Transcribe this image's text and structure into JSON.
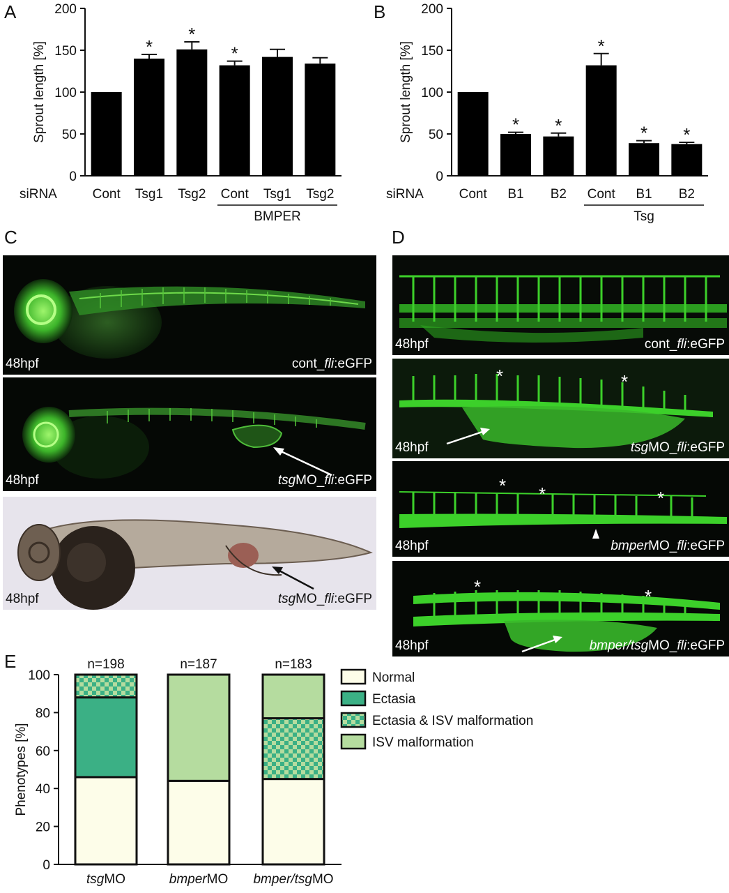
{
  "panels": {
    "A": {
      "letter": "A"
    },
    "B": {
      "letter": "B"
    },
    "C": {
      "letter": "C"
    },
    "D": {
      "letter": "D"
    },
    "E": {
      "letter": "E"
    }
  },
  "chart_data": [
    {
      "panel": "A",
      "type": "bar",
      "ylabel": "Sprout length [%]",
      "row_label": "siRNA",
      "categories": [
        "Cont",
        "Tsg1",
        "Tsg2",
        "Cont",
        "Tsg1",
        "Tsg2"
      ],
      "values": [
        100,
        140,
        151,
        132,
        142,
        134
      ],
      "errors": [
        0,
        5,
        9,
        5,
        9,
        7
      ],
      "significant": [
        false,
        true,
        true,
        true,
        false,
        false
      ],
      "significance_mark": "*",
      "group_label": "BMPER",
      "group_span": [
        3,
        5
      ],
      "ylim": [
        0,
        200
      ],
      "yticks": [
        0,
        50,
        100,
        150,
        200
      ],
      "bar_color": "#000000"
    },
    {
      "panel": "B",
      "type": "bar",
      "ylabel": "Sprout length [%]",
      "row_label": "siRNA",
      "categories": [
        "Cont",
        "B1",
        "B2",
        "Cont",
        "B1",
        "B2"
      ],
      "values": [
        100,
        50,
        47,
        132,
        39,
        38
      ],
      "errors": [
        0,
        2,
        4,
        14,
        3,
        2
      ],
      "significant": [
        false,
        true,
        true,
        true,
        true,
        true
      ],
      "significance_mark": "*",
      "group_label": "Tsg",
      "group_span": [
        3,
        5
      ],
      "ylim": [
        0,
        200
      ],
      "yticks": [
        0,
        50,
        100,
        150,
        200
      ],
      "bar_color": "#000000"
    },
    {
      "panel": "E",
      "type": "bar",
      "stacked": true,
      "ylabel": "Phenotypes [%]",
      "categories": [
        {
          "italic": "tsg",
          "plain": "MO"
        },
        {
          "italic": "bmper",
          "plain": "MO"
        },
        {
          "italic": "bmper/tsg",
          "plain": "MO"
        }
      ],
      "n_labels": [
        "n=198",
        "n=187",
        "n=183"
      ],
      "series": [
        {
          "name": "Normal",
          "values": [
            46,
            44,
            45
          ],
          "color": "#fdfde9",
          "pattern": "solid"
        },
        {
          "name": "Ectasia",
          "values": [
            42,
            0,
            0
          ],
          "color": "#3bb085",
          "pattern": "solid"
        },
        {
          "name": "Ectasia & ISV malformation",
          "values": [
            12,
            0,
            32
          ],
          "color": "#3bb085",
          "pattern": "checker"
        },
        {
          "name": "ISV malformation",
          "values": [
            0,
            56,
            23
          ],
          "color": "#b5dc9f",
          "pattern": "solid"
        }
      ],
      "ylim": [
        0,
        100
      ],
      "yticks": [
        0,
        20,
        40,
        60,
        80,
        100
      ],
      "legend_position": "right"
    }
  ],
  "panel_c": [
    {
      "stage": "48hpf",
      "caption": {
        "prefix": "cont_",
        "italic": "fli",
        "suffix": ":eGFP"
      }
    },
    {
      "stage": "48hpf",
      "caption": {
        "prefix": "",
        "italic": "tsg",
        "middle": "MO_",
        "italic2": "fli",
        "suffix": ":eGFP"
      }
    },
    {
      "stage": "48hpf",
      "caption": {
        "prefix": "",
        "italic": "tsg",
        "middle": "MO_",
        "italic2": "fli",
        "suffix": ":eGFP"
      }
    }
  ],
  "panel_d": [
    {
      "stage": "48hpf",
      "caption": {
        "prefix": "cont_",
        "italic": "fli",
        "suffix": ":eGFP"
      }
    },
    {
      "stage": "48hpf",
      "caption": {
        "prefix": "",
        "italic": "tsg",
        "middle": "MO_",
        "italic2": "fli",
        "suffix": ":eGFP"
      }
    },
    {
      "stage": "48hpf",
      "caption": {
        "prefix": "",
        "italic": "bmper",
        "middle": "MO_",
        "italic2": "fli",
        "suffix": ":eGFP"
      }
    },
    {
      "stage": "48hpf",
      "caption": {
        "prefix": "",
        "italic": "bmper/tsg",
        "middle": "MO_",
        "italic2": "fli",
        "suffix": ":eGFP"
      }
    }
  ],
  "annotation_mark": "*"
}
